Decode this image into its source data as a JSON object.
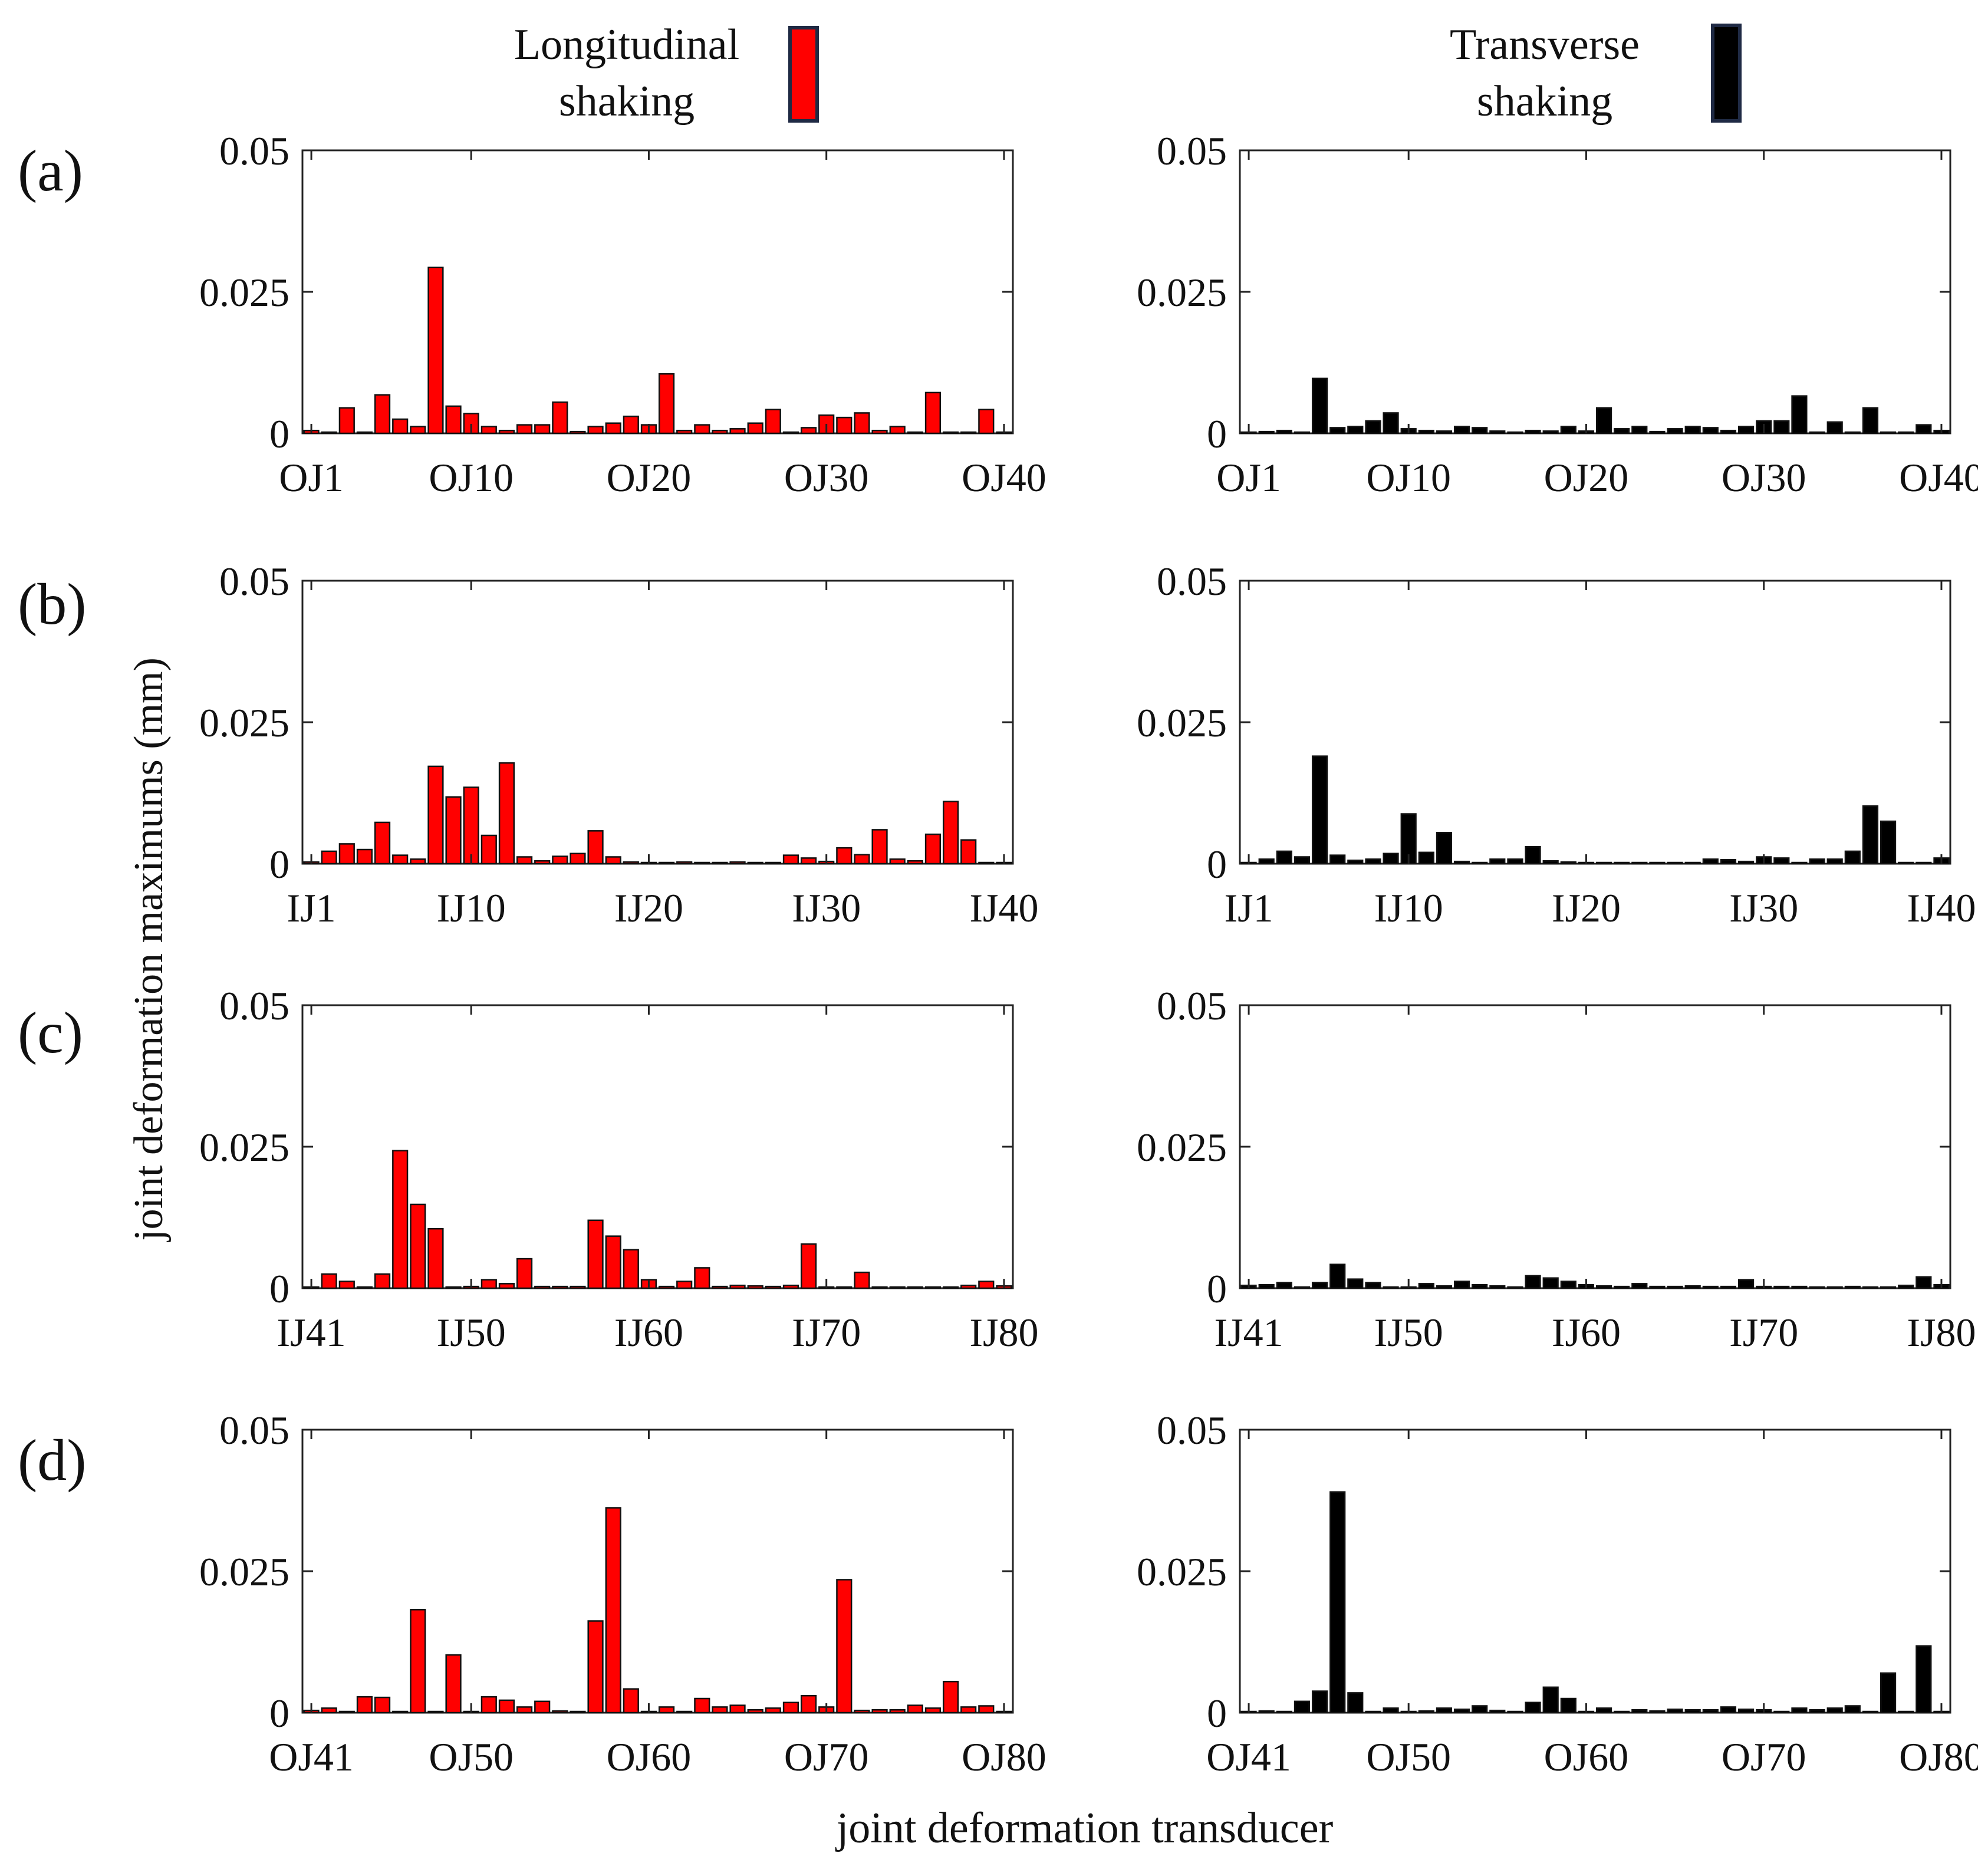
{
  "legend": {
    "items": [
      {
        "label_line1": "Longitudinal",
        "label_line2": "shaking",
        "color": "#ff0000"
      },
      {
        "label_line1": "Transverse",
        "label_line2": "shaking",
        "color": "#000000"
      }
    ],
    "swatch_border": "#1f2a44"
  },
  "panel_labels": [
    "(a)",
    "(b)",
    "(c)",
    "(d)"
  ],
  "ylabel": "joint deformation maximums (mm)",
  "xlabel": "joint deformation transducer",
  "chart_data": [
    {
      "id": "a-longitudinal",
      "type": "bar",
      "panel": "(a)",
      "series": "Longitudinal shaking",
      "color": "#ff0000",
      "ylim": [
        0,
        0.05
      ],
      "yticks": [
        "0",
        "0.025",
        "0.05"
      ],
      "xticks": [
        "OJ1",
        "OJ10",
        "OJ20",
        "OJ30",
        "OJ40"
      ],
      "xtick_index": [
        1,
        10,
        20,
        30,
        40
      ],
      "values": [
        0.0005,
        0.0002,
        0.0045,
        0,
        0.0068,
        0.0025,
        0.0012,
        0.0293,
        0.0048,
        0.0035,
        0.0012,
        0.0005,
        0.0015,
        0.0015,
        0.0055,
        0.0003,
        0.0012,
        0.0018,
        0.003,
        0.0015,
        0.0105,
        0.0005,
        0.0015,
        0.0005,
        0.0008,
        0.0018,
        0.0042,
        0.0002,
        0.001,
        0.0032,
        0.0028,
        0.0036,
        0.0005,
        0.0012,
        0,
        0.0072,
        0,
        0,
        0.0042,
        0.0002
      ]
    },
    {
      "id": "a-transverse",
      "type": "bar",
      "panel": "(a)",
      "series": "Transverse shaking",
      "color": "#000000",
      "ylim": [
        0,
        0.05
      ],
      "yticks": [
        "0",
        "0.025",
        "0.05"
      ],
      "xticks": [
        "OJ1",
        "OJ10",
        "OJ20",
        "OJ30",
        "OJ40"
      ],
      "xtick_index": [
        1,
        10,
        20,
        30,
        40
      ],
      "values": [
        0.0002,
        0.0003,
        0.0005,
        0,
        0.0097,
        0.001,
        0.0012,
        0.0022,
        0.0036,
        0.0008,
        0.0005,
        0.0004,
        0.0012,
        0.001,
        0.0004,
        0,
        0.0005,
        0.0004,
        0.0012,
        0.0004,
        0.0045,
        0.0008,
        0.0012,
        0.0003,
        0.0008,
        0.0012,
        0.001,
        0.0005,
        0.0012,
        0.0022,
        0.0022,
        0.0066,
        0.0002,
        0.002,
        0,
        0.0045,
        0,
        0,
        0.0015,
        0.0005
      ]
    },
    {
      "id": "b-longitudinal",
      "type": "bar",
      "panel": "(b)",
      "series": "Longitudinal shaking",
      "color": "#ff0000",
      "ylim": [
        0,
        0.05
      ],
      "yticks": [
        "0",
        "0.025",
        "0.05"
      ],
      "xticks": [
        "IJ1",
        "IJ10",
        "IJ20",
        "IJ30",
        "IJ40"
      ],
      "xtick_index": [
        1,
        10,
        20,
        30,
        40
      ],
      "values": [
        0.0003,
        0.0022,
        0.0035,
        0.0025,
        0.0073,
        0.0015,
        0.0008,
        0.0172,
        0.0118,
        0.0135,
        0.005,
        0.0178,
        0.0012,
        0.0005,
        0.0013,
        0.0018,
        0.0058,
        0.0012,
        0.0003,
        0.0002,
        0.0001,
        0.0003,
        0.0001,
        0.0001,
        0.0003,
        0.0001,
        0.0001,
        0.0015,
        0.001,
        0.0004,
        0.0028,
        0.0016,
        0.006,
        0.0008,
        0.0005,
        0.0052,
        0.011,
        0.0042,
        0.0001,
        0.0002
      ]
    },
    {
      "id": "b-transverse",
      "type": "bar",
      "panel": "(b)",
      "series": "Transverse shaking",
      "color": "#000000",
      "ylim": [
        0,
        0.05
      ],
      "yticks": [
        "0",
        "0.025",
        "0.05"
      ],
      "xticks": [
        "IJ1",
        "IJ10",
        "IJ20",
        "IJ30",
        "IJ40"
      ],
      "xtick_index": [
        1,
        10,
        20,
        30,
        40
      ],
      "values": [
        0.0002,
        0.0008,
        0.0022,
        0.0012,
        0.019,
        0.0015,
        0.0006,
        0.0008,
        0.0018,
        0.0088,
        0.002,
        0.0055,
        0.0004,
        0.0002,
        0.0008,
        0.0008,
        0.003,
        0.0005,
        0.0003,
        0.0001,
        0.0001,
        0.0002,
        0.0001,
        0.0001,
        0.0001,
        0.0001,
        0.0008,
        0.0007,
        0.0004,
        0.0012,
        0.001,
        0.0002,
        0.0008,
        0.0008,
        0.0022,
        0.0102,
        0.0075,
        0.0001,
        0.0001,
        0.001
      ]
    },
    {
      "id": "c-longitudinal",
      "type": "bar",
      "panel": "(c)",
      "series": "Longitudinal shaking",
      "color": "#ff0000",
      "ylim": [
        0,
        0.05
      ],
      "yticks": [
        "0",
        "0.025",
        "0.05"
      ],
      "xticks": [
        "IJ41",
        "IJ50",
        "IJ60",
        "IJ70",
        "IJ80"
      ],
      "xtick_index": [
        41,
        50,
        60,
        70,
        80
      ],
      "values": [
        0.0002,
        0.0025,
        0.0012,
        0,
        0.0025,
        0.0243,
        0.0148,
        0.0105,
        0,
        0.0003,
        0.0015,
        0.0008,
        0.0052,
        0.0003,
        0.0003,
        0.0003,
        0.012,
        0.0092,
        0.0068,
        0.0015,
        0.0003,
        0.0012,
        0.0036,
        0.0003,
        0.0005,
        0.0004,
        0.0003,
        0.0005,
        0.0078,
        0.0001,
        0,
        0.0028,
        0.0001,
        0.0001,
        0.0002,
        0.0001,
        0.0001,
        0.0005,
        0.0012,
        0.0004
      ]
    },
    {
      "id": "c-transverse",
      "type": "bar",
      "panel": "(c)",
      "series": "Transverse shaking",
      "color": "#000000",
      "ylim": [
        0,
        0.05
      ],
      "yticks": [
        "0",
        "0.025",
        "0.05"
      ],
      "xticks": [
        "IJ41",
        "IJ50",
        "IJ60",
        "IJ70",
        "IJ80"
      ],
      "xtick_index": [
        41,
        50,
        60,
        70,
        80
      ],
      "values": [
        0.0005,
        0.0006,
        0.001,
        0,
        0.001,
        0.0042,
        0.0016,
        0.001,
        0.0002,
        0.0002,
        0.0008,
        0.0004,
        0.0012,
        0.0006,
        0.0004,
        0.0002,
        0.0022,
        0.0018,
        0.0012,
        0.0006,
        0.0004,
        0.0003,
        0.0008,
        0.0003,
        0.0003,
        0.0004,
        0.0003,
        0.0003,
        0.0015,
        0.0003,
        0.0003,
        0.0003,
        0.0002,
        0.0002,
        0.0003,
        0.0002,
        0.0002,
        0.0005,
        0.002,
        0.0006
      ]
    },
    {
      "id": "d-longitudinal",
      "type": "bar",
      "panel": "(d)",
      "series": "Longitudinal shaking",
      "color": "#ff0000",
      "ylim": [
        0,
        0.05
      ],
      "yticks": [
        "0",
        "0.025",
        "0.05"
      ],
      "xticks": [
        "OJ41",
        "OJ50",
        "OJ60",
        "OJ70",
        "OJ80"
      ],
      "xtick_index": [
        41,
        50,
        60,
        70,
        80
      ],
      "values": [
        0.0004,
        0.0008,
        0,
        0.0028,
        0.0027,
        0,
        0.0182,
        0,
        0.0102,
        0,
        0.0028,
        0.0022,
        0.001,
        0.002,
        0.0003,
        0,
        0.0162,
        0.0362,
        0.0042,
        0.0002,
        0.001,
        0,
        0.0025,
        0.001,
        0.0013,
        0.0005,
        0.0008,
        0.0018,
        0.003,
        0.001,
        0.0235,
        0.0004,
        0.0005,
        0.0005,
        0.0013,
        0.0008,
        0.0055,
        0.001,
        0.0012,
        0
      ]
    },
    {
      "id": "d-transverse",
      "type": "bar",
      "panel": "(d)",
      "series": "Transverse shaking",
      "color": "#000000",
      "ylim": [
        0,
        0.05
      ],
      "yticks": [
        "0",
        "0.025",
        "0.05"
      ],
      "xticks": [
        "OJ41",
        "OJ50",
        "OJ60",
        "OJ70",
        "OJ80"
      ],
      "xtick_index": [
        41,
        50,
        60,
        70,
        80
      ],
      "values": [
        0.0002,
        0.0003,
        0,
        0.002,
        0.0038,
        0.039,
        0.0035,
        0,
        0.0008,
        0,
        0.0003,
        0.0008,
        0.0006,
        0.0012,
        0.0004,
        0,
        0.0018,
        0.0045,
        0.0025,
        0,
        0.0008,
        0,
        0.0005,
        0.0003,
        0.0006,
        0.0005,
        0.0005,
        0.001,
        0.0006,
        0.0005,
        0,
        0.0008,
        0.0005,
        0.0008,
        0.0012,
        0,
        0.007,
        0,
        0.0118,
        0
      ]
    }
  ]
}
